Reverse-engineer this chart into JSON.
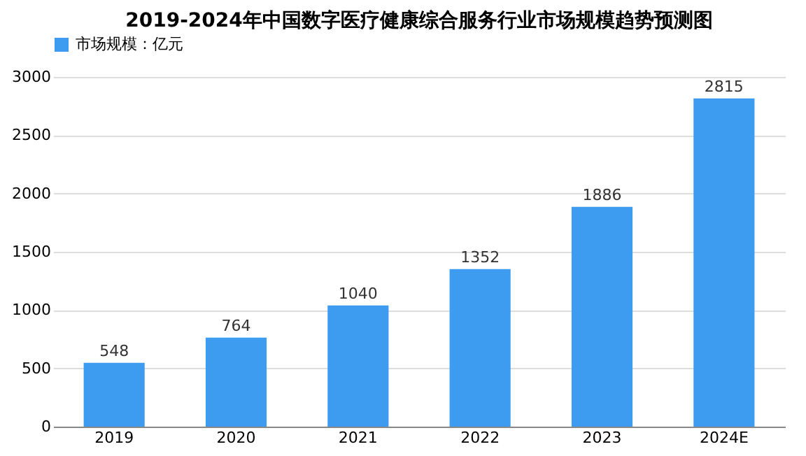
{
  "chart_data": {
    "type": "bar",
    "title": "2019-2024年中国数字医疗健康综合服务行业市场规模趋势预测图",
    "categories": [
      "2019",
      "2020",
      "2021",
      "2022",
      "2023",
      "2024E"
    ],
    "series": [
      {
        "name": "市场规模：亿元",
        "color": "#3d9cf0",
        "values": [
          548,
          764,
          1040,
          1352,
          1886,
          2815
        ]
      }
    ],
    "ylim": [
      0,
      3000
    ],
    "yticks": [
      0,
      500,
      1000,
      1500,
      2000,
      2500,
      3000
    ],
    "grid": "y",
    "legend": "top",
    "data_labels": true
  }
}
